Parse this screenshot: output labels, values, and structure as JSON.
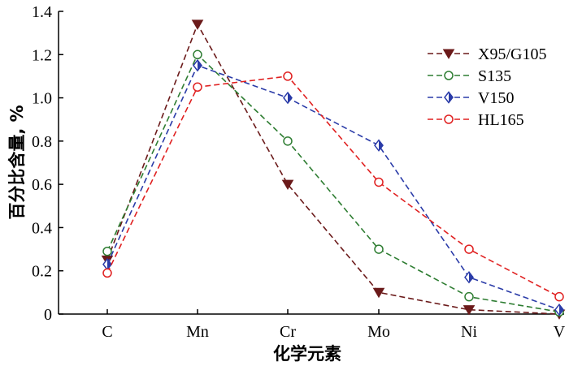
{
  "chart_data": {
    "type": "line",
    "xlabel": "化学元素",
    "ylabel": "百分比含量, %",
    "categories": [
      "C",
      "Mn",
      "Cr",
      "Mo",
      "Ni",
      "V"
    ],
    "ylim": [
      0,
      1.4
    ],
    "yticks": [
      0,
      0.2,
      0.4,
      0.6,
      0.8,
      1.0,
      1.2,
      1.4
    ],
    "ytick_labels": [
      "0",
      "0.2",
      "0.4",
      "0.6",
      "0.8",
      "1.0",
      "1.2",
      "1.4"
    ],
    "grid": false,
    "legend_position": "top-right",
    "series": [
      {
        "name": "X95/G105",
        "color": "#6b1a1a",
        "marker": "triangle-down",
        "values": [
          0.25,
          1.34,
          0.6,
          0.1,
          0.02,
          0.0
        ]
      },
      {
        "name": "S135",
        "color": "#2e7d32",
        "marker": "circle",
        "values": [
          0.29,
          1.2,
          0.8,
          0.3,
          0.08,
          0.01
        ]
      },
      {
        "name": "V150",
        "color": "#2a3ba8",
        "marker": "diamond",
        "values": [
          0.23,
          1.15,
          1.0,
          0.78,
          0.17,
          0.02
        ]
      },
      {
        "name": "HL165",
        "color": "#e02020",
        "marker": "circle",
        "values": [
          0.19,
          1.05,
          1.1,
          0.61,
          0.3,
          0.08
        ]
      }
    ]
  }
}
